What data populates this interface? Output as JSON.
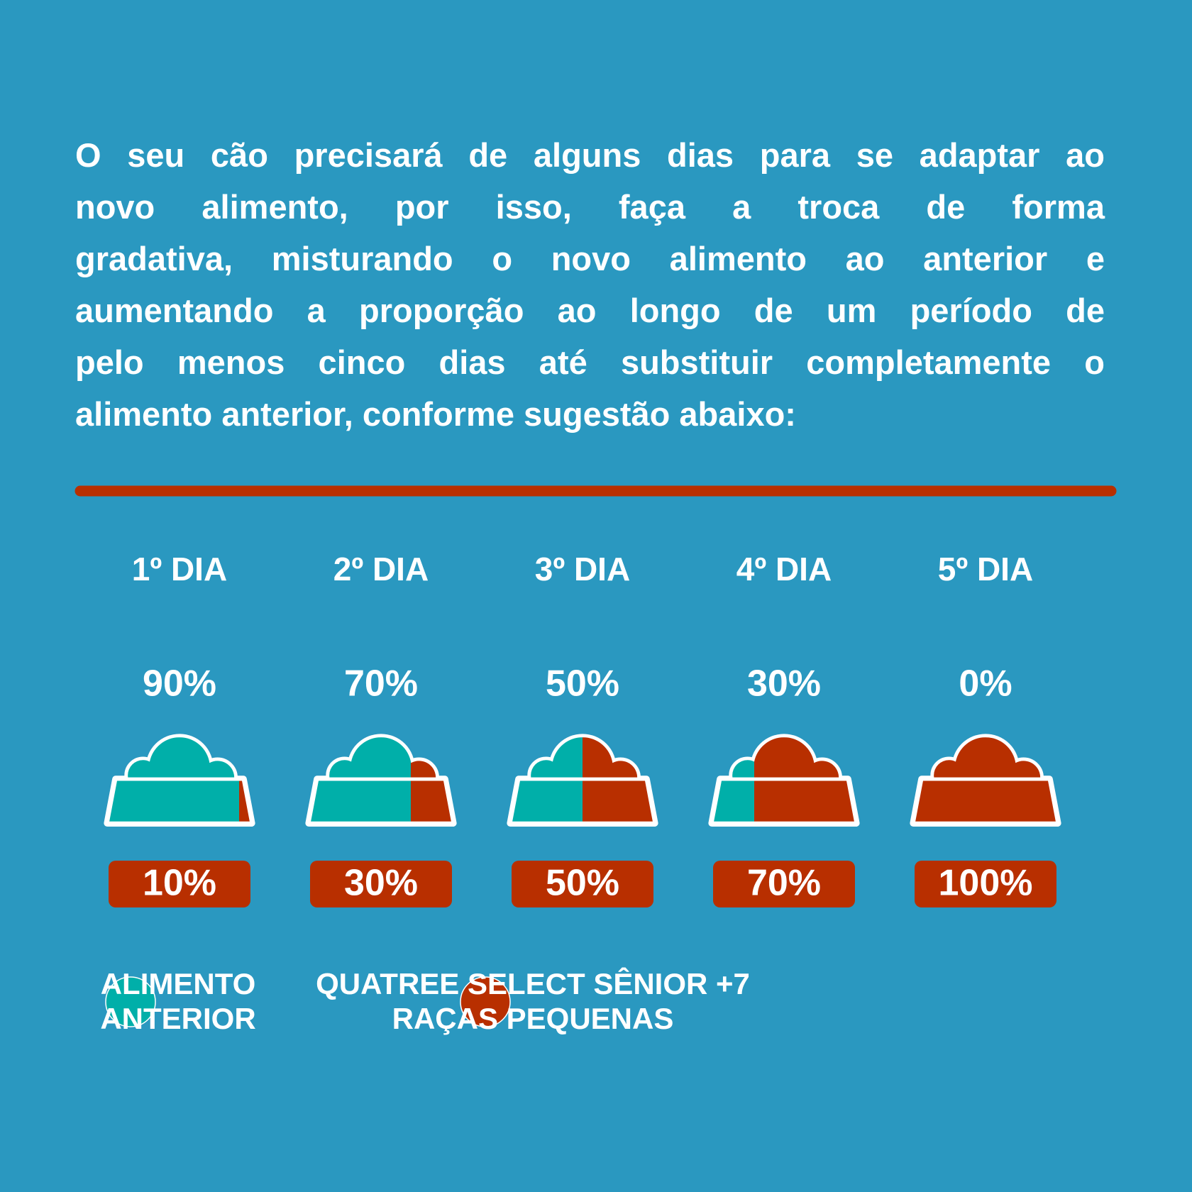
{
  "intro": {
    "lines": [
      "O seu cão precisará de alguns dias para se adaptar ao",
      "novo alimento, por isso, faça a troca de forma",
      "gradativa, misturando o novo alimento ao anterior e",
      "aumentando a proporção ao longo de um período de",
      "pelo menos cinco dias até substituir completamente o",
      "alimento anterior, conforme sugestão abaixo:"
    ]
  },
  "days": [
    {
      "label": "1º DIA",
      "old": {
        "value": 90,
        "label": "90%"
      },
      "new": {
        "value": 10,
        "label": "10%"
      }
    },
    {
      "label": "2º DIA",
      "old": {
        "value": 70,
        "label": "70%"
      },
      "new": {
        "value": 30,
        "label": "30%"
      }
    },
    {
      "label": "3º DIA",
      "old": {
        "value": 50,
        "label": "50%"
      },
      "new": {
        "value": 50,
        "label": "50%"
      }
    },
    {
      "label": "4º DIA",
      "old": {
        "value": 30,
        "label": "30%"
      },
      "new": {
        "value": 70,
        "label": "70%"
      }
    },
    {
      "label": "5º DIA",
      "old": {
        "value": 0,
        "label": "0%"
      },
      "new": {
        "value": 100,
        "label": "100%"
      }
    }
  ],
  "colors": {
    "old": "#00afa9",
    "new": "#b82f00"
  },
  "legend": [
    {
      "lines": [
        "ALIMENTO",
        "ANTERIOR"
      ]
    },
    {
      "lines": [
        "QUATREE SELECT SÊNIOR +7",
        "RAÇAS PEQUENAS"
      ]
    }
  ]
}
